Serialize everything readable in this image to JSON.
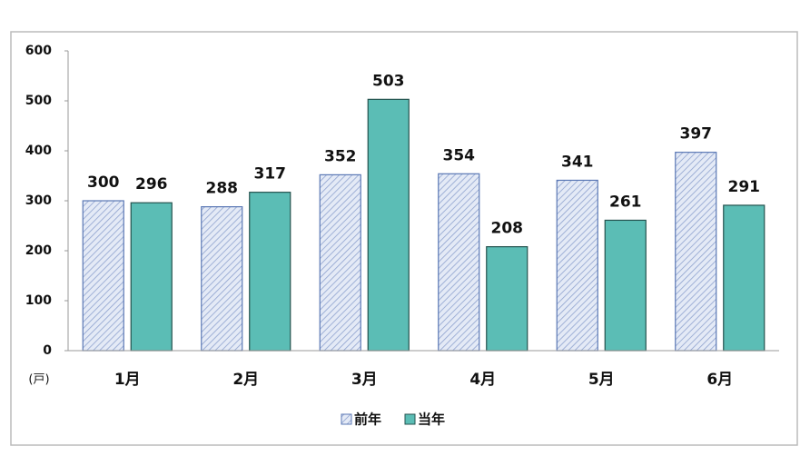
{
  "chart_data": {
    "type": "bar",
    "y_label": "(戸)",
    "categories": [
      "1月",
      "2月",
      "3月",
      "4月",
      "5月",
      "6月"
    ],
    "series": [
      {
        "name": "前年",
        "color": "#dbe3f3",
        "hatch": true,
        "values": [
          300,
          288,
          352,
          354,
          341,
          397
        ]
      },
      {
        "name": "当年",
        "color": "#5bbdb5",
        "hatch": false,
        "values": [
          296,
          317,
          503,
          208,
          261,
          291
        ]
      }
    ],
    "ylim": [
      0,
      600
    ],
    "yticks": [
      0,
      100,
      200,
      300,
      400,
      500,
      600
    ],
    "grid": false,
    "legend": "bottom"
  }
}
